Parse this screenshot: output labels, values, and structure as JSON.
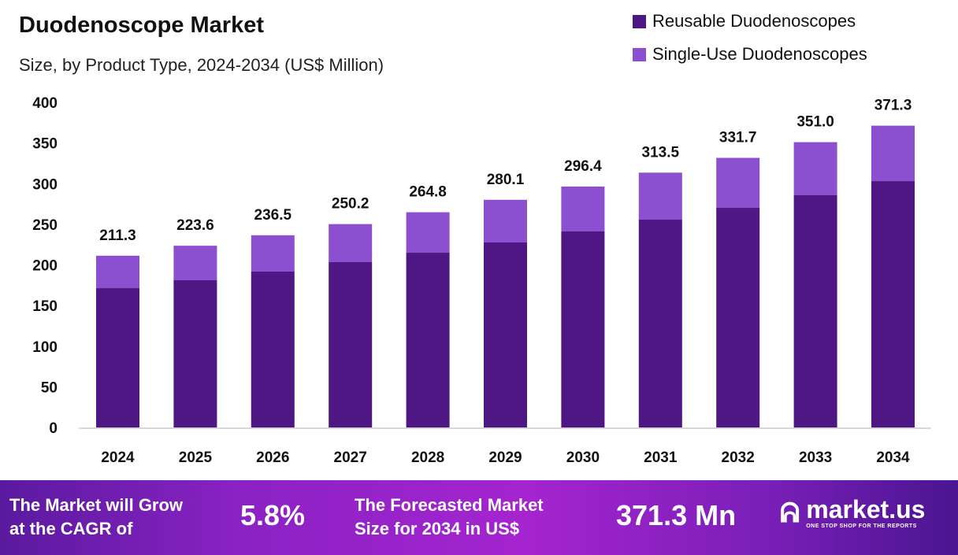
{
  "chart_data": {
    "type": "bar",
    "stacked": true,
    "title": "Duodenoscope Market",
    "subtitle": "Size, by Product Type, 2024-2034 (US$ Million)",
    "categories": [
      "2024",
      "2025",
      "2026",
      "2027",
      "2028",
      "2029",
      "2030",
      "2031",
      "2032",
      "2033",
      "2034"
    ],
    "series": [
      {
        "name": "Reusable Duodenoscopes",
        "color": "#4e1783",
        "values": [
          171.4,
          181.1,
          191.8,
          203.4,
          215.0,
          227.6,
          241.2,
          255.7,
          270.2,
          285.7,
          303.1
        ]
      },
      {
        "name": "Single-Use Duodenoscopes",
        "color": "#8b4fcf",
        "values": [
          39.9,
          42.5,
          44.7,
          46.8,
          49.8,
          52.5,
          55.2,
          57.8,
          61.5,
          65.3,
          68.2
        ]
      }
    ],
    "totals": [
      "211.3",
      "223.6",
      "236.5",
      "250.2",
      "264.8",
      "280.1",
      "296.4",
      "313.5",
      "331.7",
      "351.0",
      "371.3"
    ],
    "yticks": [
      0,
      50,
      100,
      150,
      200,
      250,
      300,
      350,
      400
    ],
    "ylim": [
      0,
      400
    ],
    "grid": false,
    "legend": "top-right"
  },
  "footer": {
    "cagr_label_line1": "The Market will Grow",
    "cagr_label_line2": "at the CAGR of",
    "cagr_value": "5.8%",
    "forecast_label_line1": "The Forecasted Market",
    "forecast_label_line2": "Size for 2034 in US$",
    "forecast_value": "371.3 Mn",
    "logo_name": "market.us",
    "logo_tagline": "ONE STOP SHOP FOR THE REPORTS"
  }
}
